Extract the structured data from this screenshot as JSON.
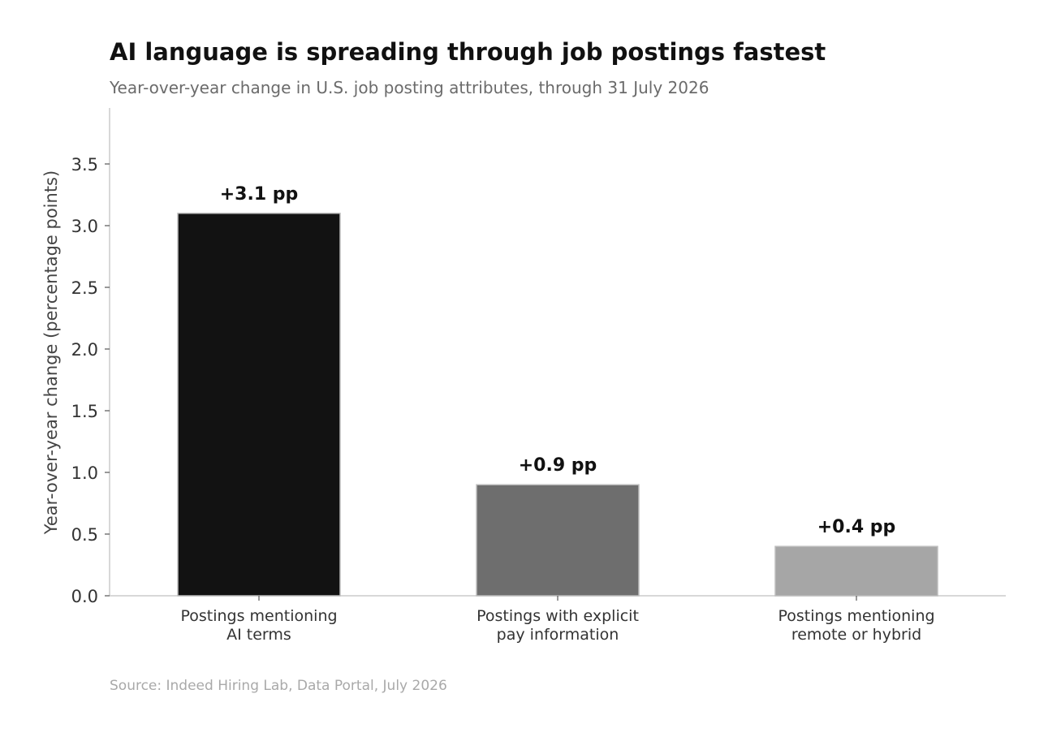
{
  "chart_data": {
    "type": "bar",
    "title": "AI language is spreading through job postings fastest",
    "subtitle": "Year-over-year change in U.S. job posting attributes, through 31 July 2026",
    "ylabel": "Year-over-year change (percentage points)",
    "xlabel": "",
    "categories": [
      [
        "Postings mentioning",
        "AI terms"
      ],
      [
        "Postings with explicit",
        "pay information"
      ],
      [
        "Postings mentioning",
        "remote or hybrid"
      ]
    ],
    "values": [
      3.1,
      0.9,
      0.4
    ],
    "value_labels": [
      "+3.1 pp",
      "+0.9 pp",
      "+0.4 pp"
    ],
    "bar_colors": [
      "#121212",
      "#6e6e6e",
      "#a6a6a6"
    ],
    "ylim": [
      0,
      3.95
    ],
    "yticks": [
      0.0,
      0.5,
      1.0,
      1.5,
      2.0,
      2.5,
      3.0,
      3.5
    ],
    "ytick_labels": [
      "0.0",
      "0.5",
      "1.0",
      "1.5",
      "2.0",
      "2.5",
      "3.0",
      "3.5"
    ],
    "grid": false,
    "legend": "none",
    "source": "Source: Indeed Hiring Lab, Data Portal, July 2026"
  }
}
